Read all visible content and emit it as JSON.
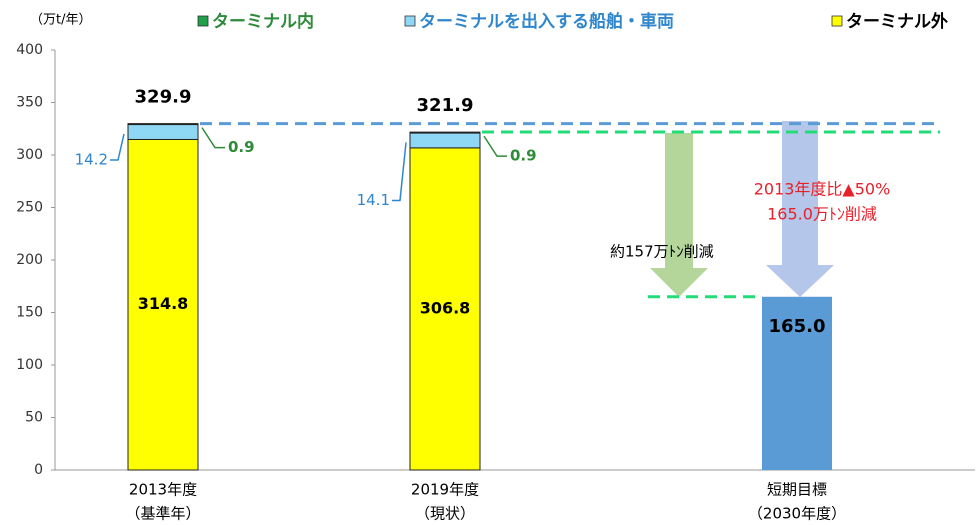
{
  "chart_data": {
    "type": "stacked_bar",
    "unit_label": "（万t/年）",
    "categories": [
      [
        "2013年度",
        "（基準年）"
      ],
      [
        "2019年度",
        "（現状）"
      ],
      [
        "短期目標",
        "（2030年度）"
      ]
    ],
    "series": [
      {
        "name": "ターミナル内",
        "color": "#1fa04a",
        "label_color": "#2e8b3a",
        "values": [
          0.9,
          0.9,
          null
        ]
      },
      {
        "name": "ターミナルを出入する船舶・車両",
        "color": "#8fd8f5",
        "label_color": "#2f86cc",
        "values": [
          14.2,
          14.1,
          null
        ]
      },
      {
        "name": "ターミナル外",
        "color": "#ffff00",
        "label_color": "#000000",
        "values": [
          314.8,
          306.8,
          null
        ]
      }
    ],
    "totals": [
      329.9,
      321.9
    ],
    "target": {
      "category": 2,
      "value": 165.0,
      "value_label": "165.0",
      "color": "#5b9bd5"
    },
    "annotations": [
      "約157万ﾄﾝ削減",
      "2013年度比▲50%",
      "165.0万ﾄﾝ削減"
    ],
    "ylim": [
      0,
      400
    ],
    "yticks": [
      0,
      50,
      100,
      150,
      200,
      250,
      300,
      350,
      400
    ],
    "grid": false
  }
}
